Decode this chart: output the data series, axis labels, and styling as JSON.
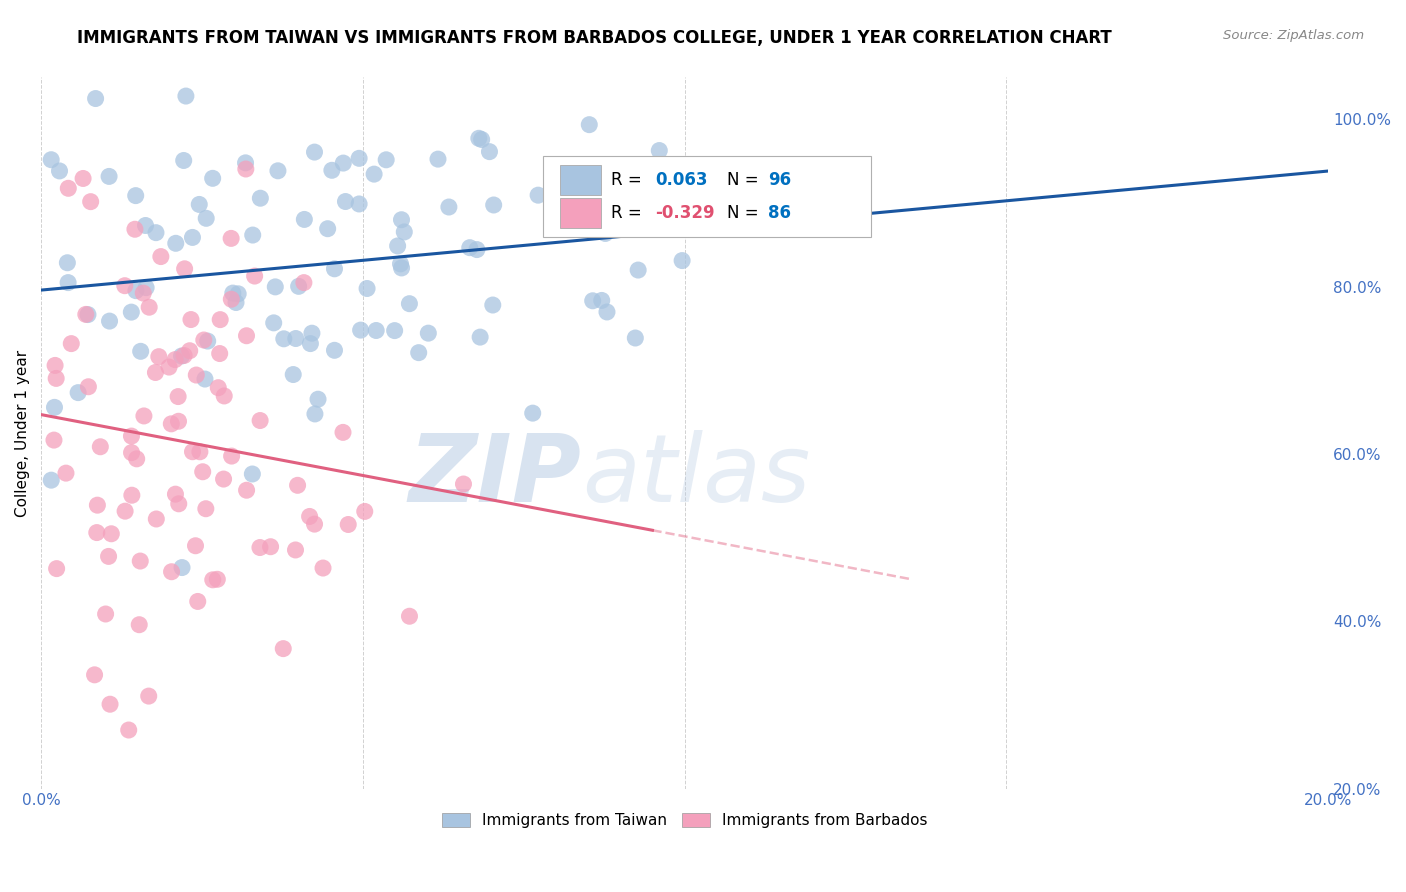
{
  "title": "IMMIGRANTS FROM TAIWAN VS IMMIGRANTS FROM BARBADOS COLLEGE, UNDER 1 YEAR CORRELATION CHART",
  "source": "Source: ZipAtlas.com",
  "ylabel": "College, Under 1 year",
  "xmin": 0.0,
  "xmax": 0.2,
  "ymin": 0.2,
  "ymax": 1.05,
  "taiwan_R": 0.063,
  "taiwan_N": 96,
  "barbados_R": -0.329,
  "barbados_N": 86,
  "taiwan_color": "#a8c4e0",
  "barbados_color": "#f4a0bc",
  "taiwan_line_color": "#1a56a0",
  "barbados_line_color": "#e06080",
  "watermark_color": "#d0dff0",
  "background_color": "#ffffff",
  "grid_color": "#cccccc",
  "title_fontsize": 12,
  "tick_label_color": "#4472c4",
  "legend_R_taiwan_color": "#0070c0",
  "legend_R_barbados_color": "#e05070",
  "legend_N_color": "#0070c0"
}
